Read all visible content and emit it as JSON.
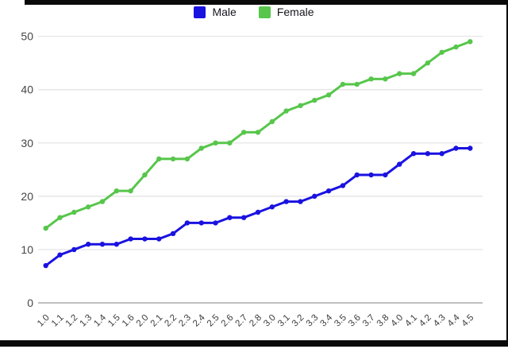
{
  "chart_data": {
    "type": "line",
    "title": "",
    "xlabel": "",
    "ylabel": "",
    "categories": [
      "1.0",
      "1.1",
      "1.2",
      "1.3",
      "1.4",
      "1.5",
      "1.6",
      "2.0",
      "2.1",
      "2.2",
      "2.3",
      "2.4",
      "2.5",
      "2.6",
      "2.7",
      "2.8",
      "3.0",
      "3.1",
      "3.2",
      "3.3",
      "3.4",
      "3.5",
      "3.6",
      "3.7",
      "3.8",
      "4.0",
      "4.1",
      "4.2",
      "4.3",
      "4.4",
      "4.5"
    ],
    "series": [
      {
        "name": "Male",
        "color": "#1a12e0",
        "values": [
          7,
          9,
          10,
          11,
          11,
          11,
          12,
          12,
          12,
          13,
          15,
          15,
          15,
          16,
          16,
          17,
          18,
          19,
          19,
          20,
          21,
          22,
          24,
          24,
          24,
          26,
          28,
          28,
          28,
          29,
          29
        ]
      },
      {
        "name": "Female",
        "color": "#57c64b",
        "values": [
          14,
          16,
          17,
          18,
          19,
          21,
          21,
          24,
          27,
          27,
          27,
          29,
          30,
          30,
          32,
          32,
          34,
          36,
          37,
          38,
          39,
          41,
          41,
          42,
          42,
          43,
          43,
          45,
          47,
          48,
          49
        ]
      }
    ],
    "ylim": [
      0,
      50
    ],
    "yticks": [
      0,
      10,
      20,
      30,
      40,
      50
    ],
    "grid": "horizontal",
    "legend_position": "top-center",
    "x_label_rotation_deg": -45
  },
  "colors": {
    "background": "#ffffff",
    "gridline": "#e2e2e2",
    "baseline": "#ababab",
    "axis_text": "#3c3c3c",
    "legend_text": "#15151f",
    "window_border": "#0a0a0a"
  }
}
